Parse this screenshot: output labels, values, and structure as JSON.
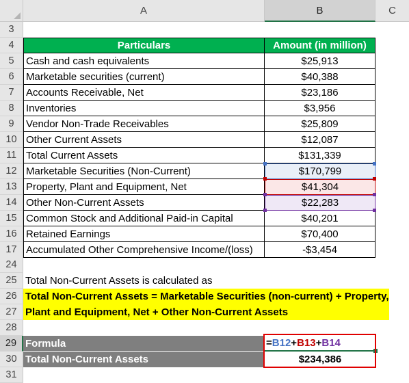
{
  "column_headers": [
    "A",
    "B",
    "C"
  ],
  "table_header": {
    "row": "4",
    "particulars": "Particulars",
    "amount": "Amount (in million)"
  },
  "rows": [
    {
      "row": "5",
      "label": "Cash and cash equivalents",
      "value": "$25,913"
    },
    {
      "row": "6",
      "label": "Marketable securities (current)",
      "value": "$40,388"
    },
    {
      "row": "7",
      "label": "Accounts Receivable, Net",
      "value": "$23,186"
    },
    {
      "row": "8",
      "label": "Inventories",
      "value": "$3,956"
    },
    {
      "row": "9",
      "label": "Vendor Non-Trade Receivables",
      "value": "$25,809"
    },
    {
      "row": "10",
      "label": "Other Current Assets",
      "value": "$12,087"
    },
    {
      "row": "11",
      "label": "Total Current Assets",
      "value": "$131,339"
    },
    {
      "row": "12",
      "label": "Marketable Securities (Non-Current)",
      "value": "$170,799"
    },
    {
      "row": "13",
      "label": "Property, Plant and Equipment, Net",
      "value": "$41,304"
    },
    {
      "row": "14",
      "label": "Other Non-Current Assets",
      "value": "$22,283"
    },
    {
      "row": "15",
      "label": "Common Stock and Additional Paid-in Capital",
      "value": "$40,201"
    },
    {
      "row": "16",
      "label": "Retained Earnings",
      "value": "$70,400"
    },
    {
      "row": "17",
      "label": "Accumulated Other Comprehensive Income/(loss)",
      "value": "-$3,454"
    }
  ],
  "row_numbers": {
    "r3": "3",
    "r24": "24",
    "r25": "25",
    "r26": "26",
    "r27": "27",
    "r28": "28",
    "r29": "29",
    "r30": "30",
    "r31": "31"
  },
  "note": "Total Non-Current Assets is calculated as",
  "formula_text_line1": "Total Non-Current Assets = Marketable Securities (non-current) + Property,",
  "formula_text_line2": "Plant and Equipment, Net + Other Non-Current Assets",
  "formula_row": {
    "label": "Formula",
    "parts": [
      {
        "text": "=",
        "color": "#000000"
      },
      {
        "text": "B12",
        "color": "#4472c4"
      },
      {
        "text": "+",
        "color": "#000000"
      },
      {
        "text": "B13",
        "color": "#c00000"
      },
      {
        "text": "+",
        "color": "#000000"
      },
      {
        "text": "B14",
        "color": "#7030a0"
      }
    ]
  },
  "result_row": {
    "label": "Total Non-Current Assets",
    "value": "$234,386"
  },
  "colors": {
    "header_green": "#00b050",
    "formula_gray": "#7f7f7f",
    "highlight_yellow": "#ffff00",
    "ref_blue": "#4472c4",
    "ref_red": "#c00000",
    "ref_purple": "#7030a0",
    "box_red": "#e00000"
  }
}
